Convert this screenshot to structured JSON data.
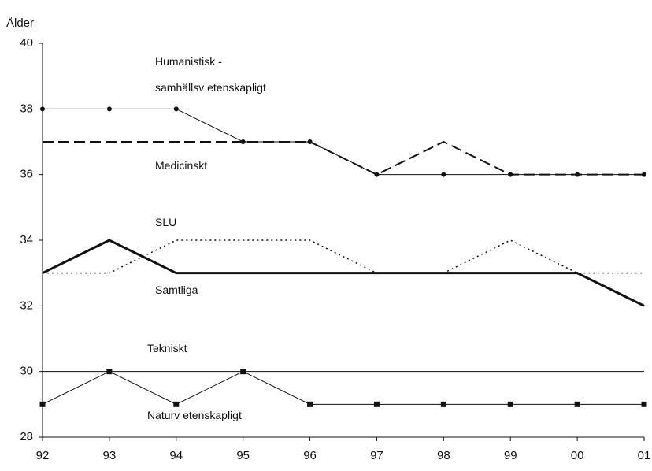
{
  "chart_data": {
    "type": "line",
    "y_label": "Ålder",
    "categories": [
      "92",
      "93",
      "94",
      "95",
      "96",
      "97",
      "98",
      "99",
      "00",
      "01"
    ],
    "ylim": [
      28,
      40
    ],
    "yticks": [
      28,
      30,
      32,
      34,
      36,
      38,
      40
    ],
    "series": [
      {
        "name": "Humanistisk -\nsamhällsv etenskapligt",
        "color": "#111111",
        "style": "solid",
        "width": 1,
        "marker": "circle",
        "values": [
          38,
          38,
          38,
          37,
          37,
          36,
          36,
          36,
          36,
          36
        ]
      },
      {
        "name": "Medicinskt",
        "color": "#111111",
        "style": "dashed",
        "width": 2,
        "marker": "none",
        "values": [
          37,
          37,
          37,
          37,
          37,
          36,
          37,
          36,
          36,
          36
        ]
      },
      {
        "name": "SLU",
        "color": "#111111",
        "style": "dotted",
        "width": 1.5,
        "marker": "none",
        "values": [
          33,
          33,
          34,
          34,
          34,
          33,
          33,
          34,
          33,
          33
        ]
      },
      {
        "name": "Samtliga",
        "color": "#111111",
        "style": "solid",
        "width": 3,
        "marker": "none",
        "values": [
          33,
          34,
          33,
          33,
          33,
          33,
          33,
          33,
          33,
          32
        ]
      },
      {
        "name": "Tekniskt",
        "color": "#111111",
        "style": "solid",
        "width": 1,
        "marker": "none",
        "values": [
          30,
          30,
          30,
          30,
          30,
          30,
          30,
          30,
          30,
          30
        ]
      },
      {
        "name": "Naturv etenskapligt",
        "color": "#111111",
        "style": "solid",
        "width": 1,
        "marker": "square",
        "values": [
          29,
          30,
          29,
          30,
          29,
          29,
          29,
          29,
          29,
          29
        ]
      }
    ]
  }
}
